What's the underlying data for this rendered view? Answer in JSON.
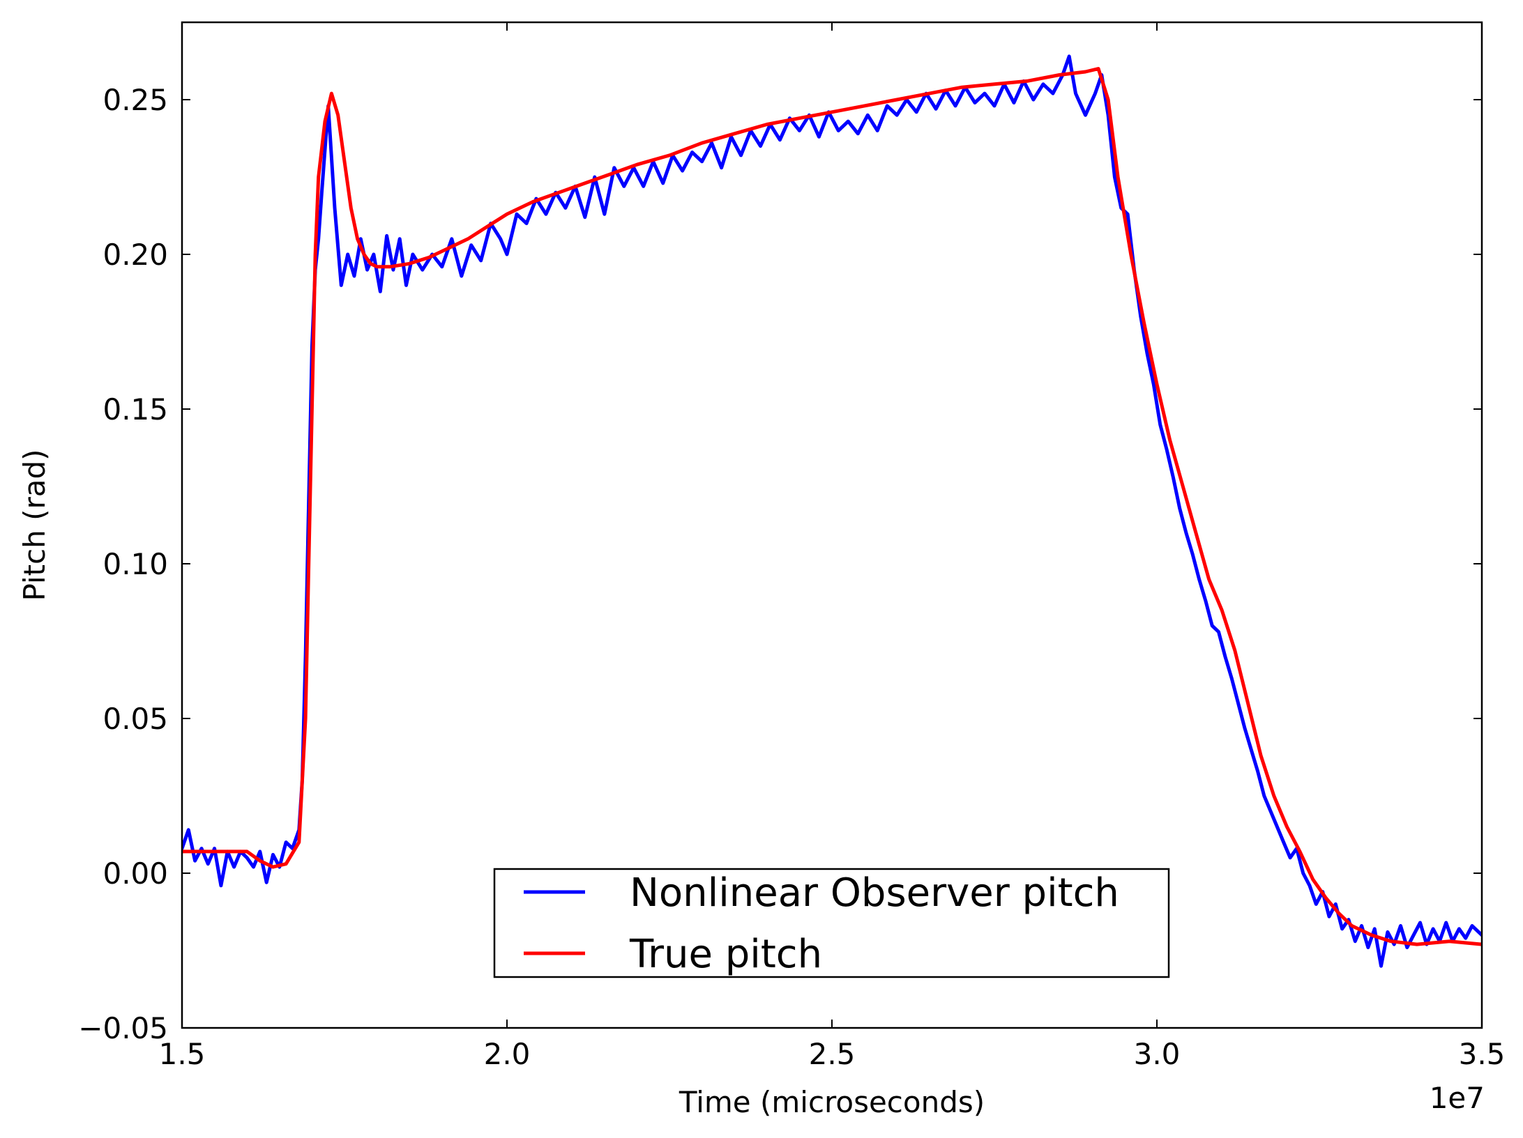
{
  "chart_data": {
    "type": "line",
    "title": "",
    "xlabel": "Time (microseconds)",
    "ylabel": "Pitch (rad)",
    "x_offset_label": "1e7",
    "xlim": [
      15000000,
      35000000
    ],
    "ylim": [
      -0.05,
      0.275
    ],
    "x_ticks": [
      15000000,
      20000000,
      25000000,
      30000000,
      35000000
    ],
    "x_tick_labels": [
      "1.5",
      "2.0",
      "2.5",
      "3.0",
      "3.5"
    ],
    "y_ticks": [
      -0.05,
      0.0,
      0.05,
      0.1,
      0.15,
      0.2,
      0.25
    ],
    "y_tick_labels": [
      "−0.05",
      "0.00",
      "0.05",
      "0.10",
      "0.15",
      "0.20",
      "0.25"
    ],
    "grid": false,
    "legend_position": "bottom-center",
    "series": [
      {
        "name": "Nonlinear Observer pitch",
        "color": "#0000ff",
        "points": [
          [
            15000000,
            0.008
          ],
          [
            15100000,
            0.014
          ],
          [
            15200000,
            0.004
          ],
          [
            15300000,
            0.008
          ],
          [
            15400000,
            0.003
          ],
          [
            15500000,
            0.008
          ],
          [
            15600000,
            -0.004
          ],
          [
            15700000,
            0.007
          ],
          [
            15800000,
            0.002
          ],
          [
            15900000,
            0.007
          ],
          [
            16000000,
            0.005
          ],
          [
            16100000,
            0.002
          ],
          [
            16200000,
            0.007
          ],
          [
            16300000,
            -0.003
          ],
          [
            16400000,
            0.006
          ],
          [
            16500000,
            0.002
          ],
          [
            16600000,
            0.01
          ],
          [
            16700000,
            0.008
          ],
          [
            16800000,
            0.014
          ],
          [
            16850000,
            0.03
          ],
          [
            16900000,
            0.07
          ],
          [
            16950000,
            0.12
          ],
          [
            17000000,
            0.17
          ],
          [
            17050000,
            0.195
          ],
          [
            17100000,
            0.205
          ],
          [
            17150000,
            0.22
          ],
          [
            17250000,
            0.248
          ],
          [
            17350000,
            0.215
          ],
          [
            17450000,
            0.19
          ],
          [
            17550000,
            0.2
          ],
          [
            17650000,
            0.193
          ],
          [
            17750000,
            0.205
          ],
          [
            17850000,
            0.195
          ],
          [
            17950000,
            0.2
          ],
          [
            18050000,
            0.188
          ],
          [
            18150000,
            0.206
          ],
          [
            18250000,
            0.195
          ],
          [
            18350000,
            0.205
          ],
          [
            18450000,
            0.19
          ],
          [
            18550000,
            0.2
          ],
          [
            18700000,
            0.195
          ],
          [
            18850000,
            0.2
          ],
          [
            19000000,
            0.196
          ],
          [
            19150000,
            0.205
          ],
          [
            19300000,
            0.193
          ],
          [
            19450000,
            0.203
          ],
          [
            19600000,
            0.198
          ],
          [
            19750000,
            0.21
          ],
          [
            19900000,
            0.205
          ],
          [
            20000000,
            0.2
          ],
          [
            20150000,
            0.213
          ],
          [
            20300000,
            0.21
          ],
          [
            20450000,
            0.218
          ],
          [
            20600000,
            0.213
          ],
          [
            20750000,
            0.22
          ],
          [
            20900000,
            0.215
          ],
          [
            21050000,
            0.222
          ],
          [
            21200000,
            0.212
          ],
          [
            21350000,
            0.225
          ],
          [
            21500000,
            0.213
          ],
          [
            21650000,
            0.228
          ],
          [
            21800000,
            0.222
          ],
          [
            21950000,
            0.228
          ],
          [
            22100000,
            0.222
          ],
          [
            22250000,
            0.23
          ],
          [
            22400000,
            0.223
          ],
          [
            22550000,
            0.232
          ],
          [
            22700000,
            0.227
          ],
          [
            22850000,
            0.233
          ],
          [
            23000000,
            0.23
          ],
          [
            23150000,
            0.236
          ],
          [
            23300000,
            0.228
          ],
          [
            23450000,
            0.238
          ],
          [
            23600000,
            0.232
          ],
          [
            23750000,
            0.24
          ],
          [
            23900000,
            0.235
          ],
          [
            24050000,
            0.242
          ],
          [
            24200000,
            0.237
          ],
          [
            24350000,
            0.244
          ],
          [
            24500000,
            0.24
          ],
          [
            24650000,
            0.245
          ],
          [
            24800000,
            0.238
          ],
          [
            24950000,
            0.246
          ],
          [
            25100000,
            0.24
          ],
          [
            25250000,
            0.243
          ],
          [
            25400000,
            0.239
          ],
          [
            25550000,
            0.245
          ],
          [
            25700000,
            0.24
          ],
          [
            25850000,
            0.248
          ],
          [
            26000000,
            0.245
          ],
          [
            26150000,
            0.25
          ],
          [
            26300000,
            0.246
          ],
          [
            26450000,
            0.252
          ],
          [
            26600000,
            0.247
          ],
          [
            26750000,
            0.253
          ],
          [
            26900000,
            0.248
          ],
          [
            27050000,
            0.254
          ],
          [
            27200000,
            0.249
          ],
          [
            27350000,
            0.252
          ],
          [
            27500000,
            0.248
          ],
          [
            27650000,
            0.255
          ],
          [
            27800000,
            0.249
          ],
          [
            27950000,
            0.256
          ],
          [
            28100000,
            0.25
          ],
          [
            28250000,
            0.255
          ],
          [
            28400000,
            0.252
          ],
          [
            28550000,
            0.258
          ],
          [
            28650000,
            0.264
          ],
          [
            28750000,
            0.252
          ],
          [
            28900000,
            0.245
          ],
          [
            29050000,
            0.252
          ],
          [
            29150000,
            0.258
          ],
          [
            29250000,
            0.245
          ],
          [
            29350000,
            0.225
          ],
          [
            29450000,
            0.215
          ],
          [
            29550000,
            0.213
          ],
          [
            29650000,
            0.195
          ],
          [
            29750000,
            0.18
          ],
          [
            29850000,
            0.168
          ],
          [
            29950000,
            0.158
          ],
          [
            30050000,
            0.145
          ],
          [
            30150000,
            0.137
          ],
          [
            30250000,
            0.128
          ],
          [
            30350000,
            0.118
          ],
          [
            30450000,
            0.11
          ],
          [
            30550000,
            0.103
          ],
          [
            30650000,
            0.095
          ],
          [
            30750000,
            0.088
          ],
          [
            30850000,
            0.08
          ],
          [
            30950000,
            0.078
          ],
          [
            31050000,
            0.07
          ],
          [
            31150000,
            0.063
          ],
          [
            31250000,
            0.055
          ],
          [
            31350000,
            0.047
          ],
          [
            31450000,
            0.04
          ],
          [
            31550000,
            0.033
          ],
          [
            31650000,
            0.025
          ],
          [
            31750000,
            0.02
          ],
          [
            31850000,
            0.015
          ],
          [
            31950000,
            0.01
          ],
          [
            32050000,
            0.005
          ],
          [
            32150000,
            0.008
          ],
          [
            32250000,
            0.0
          ],
          [
            32350000,
            -0.004
          ],
          [
            32450000,
            -0.01
          ],
          [
            32550000,
            -0.006
          ],
          [
            32650000,
            -0.014
          ],
          [
            32750000,
            -0.01
          ],
          [
            32850000,
            -0.018
          ],
          [
            32950000,
            -0.015
          ],
          [
            33050000,
            -0.022
          ],
          [
            33150000,
            -0.017
          ],
          [
            33250000,
            -0.024
          ],
          [
            33350000,
            -0.018
          ],
          [
            33450000,
            -0.03
          ],
          [
            33550000,
            -0.019
          ],
          [
            33650000,
            -0.023
          ],
          [
            33750000,
            -0.017
          ],
          [
            33850000,
            -0.024
          ],
          [
            33950000,
            -0.02
          ],
          [
            34050000,
            -0.016
          ],
          [
            34150000,
            -0.023
          ],
          [
            34250000,
            -0.018
          ],
          [
            34350000,
            -0.022
          ],
          [
            34450000,
            -0.016
          ],
          [
            34550000,
            -0.022
          ],
          [
            34650000,
            -0.018
          ],
          [
            34750000,
            -0.021
          ],
          [
            34850000,
            -0.017
          ],
          [
            35000000,
            -0.02
          ]
        ]
      },
      {
        "name": "True pitch",
        "color": "#ff0000",
        "points": [
          [
            15000000,
            0.007
          ],
          [
            15500000,
            0.007
          ],
          [
            16000000,
            0.007
          ],
          [
            16200000,
            0.004
          ],
          [
            16400000,
            0.002
          ],
          [
            16600000,
            0.003
          ],
          [
            16800000,
            0.01
          ],
          [
            16900000,
            0.05
          ],
          [
            16950000,
            0.1
          ],
          [
            17000000,
            0.15
          ],
          [
            17050000,
            0.2
          ],
          [
            17100000,
            0.225
          ],
          [
            17200000,
            0.243
          ],
          [
            17300000,
            0.252
          ],
          [
            17400000,
            0.245
          ],
          [
            17500000,
            0.23
          ],
          [
            17600000,
            0.215
          ],
          [
            17700000,
            0.205
          ],
          [
            17800000,
            0.2
          ],
          [
            17900000,
            0.197
          ],
          [
            18000000,
            0.196
          ],
          [
            18200000,
            0.196
          ],
          [
            18500000,
            0.197
          ],
          [
            18800000,
            0.199
          ],
          [
            19100000,
            0.202
          ],
          [
            19400000,
            0.205
          ],
          [
            19700000,
            0.209
          ],
          [
            20000000,
            0.213
          ],
          [
            20400000,
            0.217
          ],
          [
            20800000,
            0.22
          ],
          [
            21200000,
            0.223
          ],
          [
            21600000,
            0.226
          ],
          [
            22000000,
            0.229
          ],
          [
            22500000,
            0.232
          ],
          [
            23000000,
            0.236
          ],
          [
            23500000,
            0.239
          ],
          [
            24000000,
            0.242
          ],
          [
            24500000,
            0.244
          ],
          [
            25000000,
            0.246
          ],
          [
            25500000,
            0.248
          ],
          [
            26000000,
            0.25
          ],
          [
            26500000,
            0.252
          ],
          [
            27000000,
            0.254
          ],
          [
            27500000,
            0.255
          ],
          [
            28000000,
            0.256
          ],
          [
            28500000,
            0.258
          ],
          [
            28900000,
            0.259
          ],
          [
            29100000,
            0.26
          ],
          [
            29250000,
            0.25
          ],
          [
            29400000,
            0.225
          ],
          [
            29600000,
            0.2
          ],
          [
            29800000,
            0.178
          ],
          [
            30000000,
            0.158
          ],
          [
            30200000,
            0.14
          ],
          [
            30400000,
            0.125
          ],
          [
            30600000,
            0.11
          ],
          [
            30800000,
            0.095
          ],
          [
            31000000,
            0.085
          ],
          [
            31200000,
            0.072
          ],
          [
            31400000,
            0.055
          ],
          [
            31600000,
            0.038
          ],
          [
            31800000,
            0.025
          ],
          [
            32000000,
            0.015
          ],
          [
            32200000,
            0.007
          ],
          [
            32400000,
            -0.002
          ],
          [
            32600000,
            -0.008
          ],
          [
            32800000,
            -0.013
          ],
          [
            33000000,
            -0.017
          ],
          [
            33300000,
            -0.02
          ],
          [
            33600000,
            -0.022
          ],
          [
            34000000,
            -0.023
          ],
          [
            34500000,
            -0.022
          ],
          [
            35000000,
            -0.023
          ]
        ]
      }
    ]
  }
}
